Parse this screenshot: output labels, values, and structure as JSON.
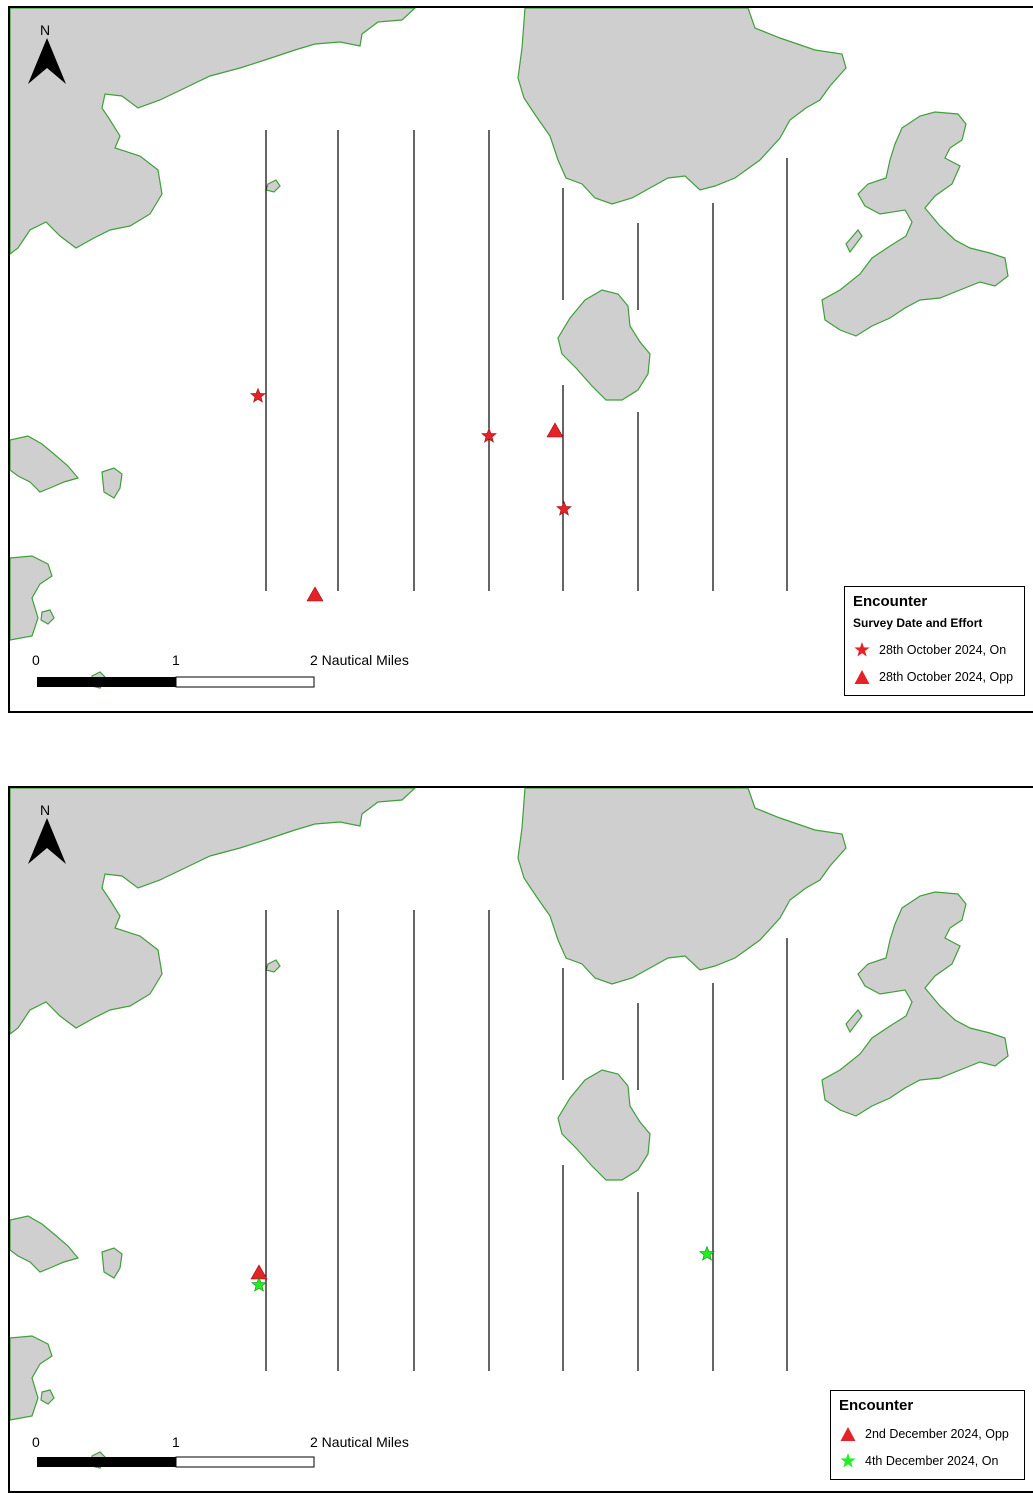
{
  "colors": {
    "land": "#cfcfcf",
    "coast": "#3f9f3a",
    "red": "#e52228",
    "green": "#22ee22"
  },
  "panels": [
    {
      "north_label": "N",
      "scale": {
        "zero": "0",
        "one": "1",
        "two": "2 Nautical Miles"
      },
      "legend": {
        "title": "Encounter",
        "subtitle": "Survey Date and Effort",
        "items": [
          {
            "symbol": "star-icon",
            "color": "#e52228",
            "label": "28th October 2024, On"
          },
          {
            "symbol": "triangle-icon",
            "color": "#e52228",
            "label": "28th October 2024, Opp"
          }
        ]
      }
    },
    {
      "north_label": "N",
      "scale": {
        "zero": "0",
        "one": "1",
        "two": "2 Nautical Miles"
      },
      "legend": {
        "title": "Encounter",
        "items": [
          {
            "symbol": "triangle-icon",
            "color": "#e52228",
            "label": "2nd December 2024,  Opp"
          },
          {
            "symbol": "star-icon",
            "color": "#22ee22",
            "label": "4th December 2024,  On"
          }
        ]
      }
    }
  ]
}
